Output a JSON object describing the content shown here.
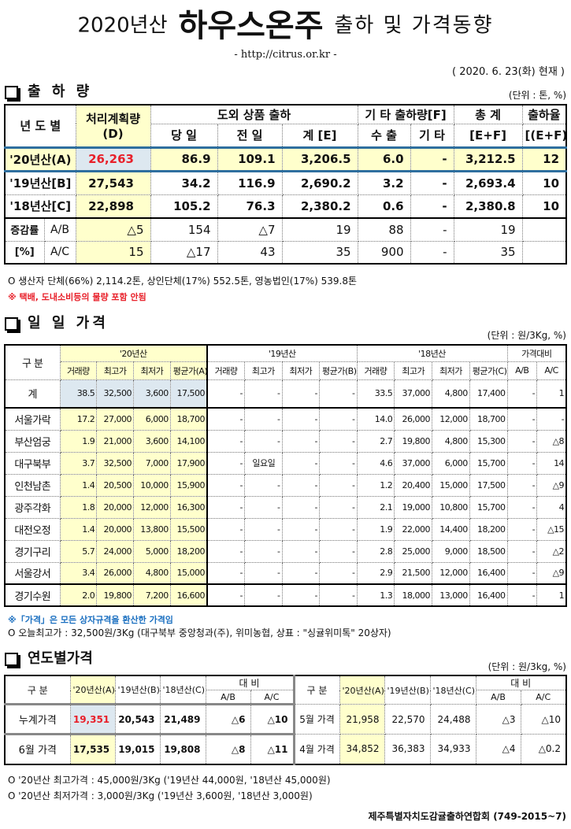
{
  "header": {
    "year": "2020년산",
    "product": "하우스온주",
    "subtitle": "출하 및 가격동향",
    "site": "- http://citrus.or.kr -",
    "date": "( 2020. 6. 23(화) 현재 )"
  },
  "shipment": {
    "title": "출 하 량",
    "unit": "(단위 : 톤, %)",
    "headers": {
      "year": "년 도 별",
      "plan": "처리계획량",
      "plan_sub": "(D)",
      "outside": "도외 상품 출하",
      "today": "당 일",
      "prev": "전 일",
      "sum": "계 [E]",
      "other": "기 타 출하량[F]",
      "export": "수 출",
      "etc": "기 타",
      "total": "총  계",
      "total_sub": "[E+F]",
      "rate": "출하율",
      "rate_sub": "[(E+F)/D]"
    },
    "rows": [
      {
        "label": "'20년산(A)",
        "cells": [
          "26,263",
          "86.9",
          "109.1",
          "3,206.5",
          "6.0",
          "-",
          "3,212.5",
          "12"
        ]
      },
      {
        "label": "'19년산[B]",
        "cells": [
          "27,543",
          "34.2",
          "116.9",
          "2,690.2",
          "3.2",
          "-",
          "2,693.4",
          "10"
        ]
      },
      {
        "label": "'18년산[C]",
        "cells": [
          "22,898",
          "105.2",
          "76.3",
          "2,380.2",
          "0.6",
          "-",
          "2,380.8",
          "10"
        ]
      }
    ],
    "change_label": "증감률",
    "change_unit": "[%]",
    "change_rows": [
      {
        "label": "A/B",
        "cells": [
          "△5",
          "154",
          "△7",
          "19",
          "88",
          "-",
          "19",
          ""
        ]
      },
      {
        "label": "A/C",
        "cells": [
          "15",
          "△17",
          "43",
          "35",
          "900",
          "-",
          "35",
          ""
        ]
      }
    ],
    "note1": "O 생산자 단체(66%) 2,114.2톤,   상인단체(17%) 552.5톤,  영농법인(17%) 539.8톤",
    "note2": "※ 택배, 도내소비등의 물량 포함 안됨"
  },
  "daily": {
    "title": "일 일 가격",
    "unit": "(단위 : 원/3Kg, %)",
    "headers": {
      "category": "구  분",
      "y20": "'20년산",
      "y19": "'19년산",
      "y18": "'18년산",
      "compare": "가격대비",
      "sub": [
        "거래량",
        "최고가",
        "최저가",
        "평균가(A)",
        "거래량",
        "최고가",
        "최저가",
        "평균가(B)",
        "거래량",
        "최고가",
        "최저가",
        "평균가(C)",
        "A/B",
        "A/C"
      ]
    },
    "rows": [
      {
        "label": "계",
        "cells": [
          "38.5",
          "32,500",
          "3,600",
          "17,500",
          "-",
          "-",
          "-",
          "-",
          "33.5",
          "37,000",
          "4,800",
          "17,400",
          "-",
          "1"
        ]
      },
      {
        "label": "서울가락",
        "cells": [
          "17.2",
          "27,000",
          "6,000",
          "18,700",
          "-",
          "-",
          "-",
          "-",
          "14.0",
          "26,000",
          "12,000",
          "18,700",
          "-",
          "-"
        ]
      },
      {
        "label": "부산엄궁",
        "cells": [
          "1.9",
          "21,000",
          "3,600",
          "14,100",
          "-",
          "-",
          "-",
          "-",
          "2.7",
          "19,800",
          "4,800",
          "15,300",
          "-",
          "△8"
        ]
      },
      {
        "label": "대구북부",
        "cells": [
          "3.7",
          "32,500",
          "7,000",
          "17,900",
          "-",
          "일요일",
          "-",
          "-",
          "4.6",
          "37,000",
          "6,000",
          "15,700",
          "-",
          "14"
        ]
      },
      {
        "label": "인천남촌",
        "cells": [
          "1.4",
          "20,500",
          "10,000",
          "15,900",
          "-",
          "-",
          "-",
          "-",
          "1.2",
          "20,400",
          "15,000",
          "17,500",
          "-",
          "△9"
        ]
      },
      {
        "label": "광주각화",
        "cells": [
          "1.8",
          "20,000",
          "12,000",
          "16,300",
          "-",
          "-",
          "-",
          "-",
          "2.1",
          "19,000",
          "10,800",
          "15,700",
          "-",
          "4"
        ]
      },
      {
        "label": "대전오정",
        "cells": [
          "1.4",
          "20,000",
          "13,800",
          "15,500",
          "-",
          "-",
          "-",
          "-",
          "1.9",
          "22,000",
          "14,400",
          "18,200",
          "-",
          "△15"
        ]
      },
      {
        "label": "경기구리",
        "cells": [
          "5.7",
          "24,000",
          "5,000",
          "18,200",
          "-",
          "-",
          "-",
          "-",
          "2.8",
          "25,000",
          "9,000",
          "18,500",
          "-",
          "△2"
        ]
      },
      {
        "label": "서울강서",
        "cells": [
          "3.4",
          "26,000",
          "4,800",
          "15,000",
          "-",
          "-",
          "-",
          "-",
          "2.9",
          "21,500",
          "12,000",
          "16,400",
          "-",
          "△9"
        ]
      },
      {
        "label": "경기수원",
        "cells": [
          "2.0",
          "19,800",
          "7,200",
          "16,600",
          "-",
          "-",
          "-",
          "-",
          "1.3",
          "18,000",
          "13,000",
          "16,400",
          "-",
          "1"
        ]
      }
    ],
    "note1": "※「가격」은 모든 상자규격을 환산한 가격임",
    "note2": "O 오늘최고가 : 32,500원/3Kg (대구북부  중앙청과(주),   위미농협,  상표 : \"싱귤위미톡\" 20상자)"
  },
  "yearly": {
    "title": "연도별가격",
    "unit": "(단위 : 원/3kg, %)",
    "headers": {
      "category": "구    분",
      "y20": "'20년산(A)",
      "y19": "'19년산(B)",
      "y18": "'18년산(C)",
      "compare": "대    비",
      "ab": "A/B",
      "ac": "A/C"
    },
    "rows": [
      {
        "label": "누계가격",
        "cells": [
          "19,351",
          "20,543",
          "21,489",
          "△6",
          "△10"
        ],
        "label2": "5월 가격",
        "cells2": [
          "21,958",
          "22,570",
          "24,488",
          "△3",
          "△10"
        ]
      },
      {
        "label": "6월 가격",
        "cells": [
          "17,535",
          "19,015",
          "19,808",
          "△8",
          "△11"
        ],
        "label2": "4월 가격",
        "cells2": [
          "34,852",
          "36,383",
          "34,933",
          "△4",
          "△0.2"
        ]
      }
    ],
    "note1": "O '20년산 최고가격 : 45,000원/3Kg ('19년산 44,000원, '18년산 45,000원)",
    "note2": "O '20년산 최저가격 :  3,000원/3Kg ('19년산  3,600원, '18년산 3,000원)"
  },
  "footer": "제주특별자치도감귤출하연합회 (749-2015~7)",
  "colors": {
    "highlight_yellow": "#ffffcc",
    "highlight_blue": "#dde8f0",
    "accent_red": "#e8202a",
    "row_border_blue": "#2f6f9f",
    "note_blue": "#1a6fc0"
  }
}
